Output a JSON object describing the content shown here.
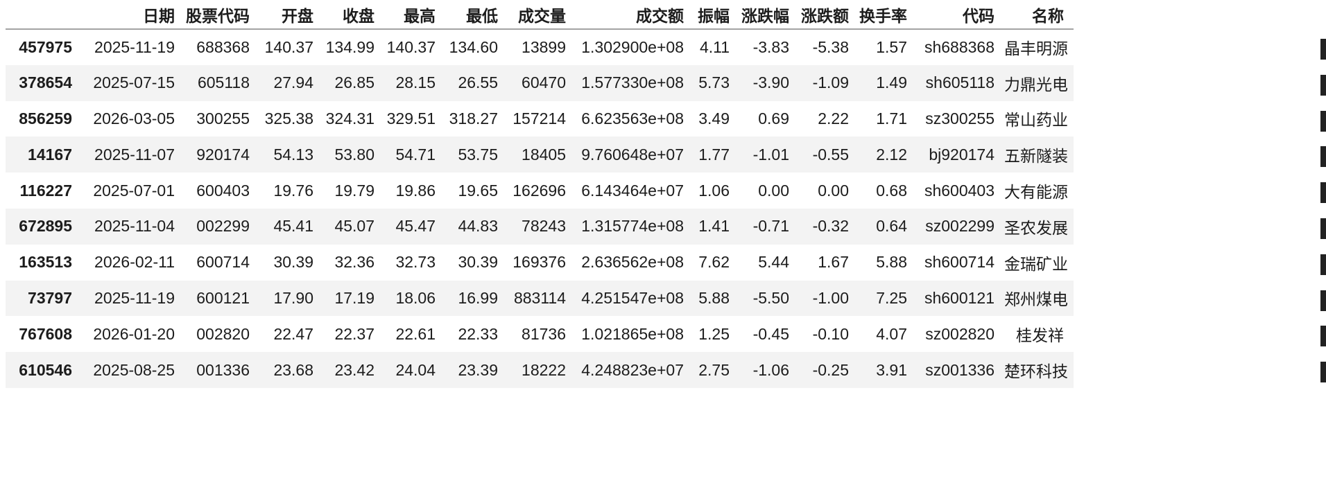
{
  "page": {
    "background": "#ffffff"
  },
  "colors": {
    "text": "#1c1c1c",
    "row_stripe": "#f3f3f3",
    "header_border": "#a3a3a3",
    "clipped_mark": "#222222"
  },
  "table": {
    "index_header": "",
    "columns": [
      "日期",
      "股票代码",
      "开盘",
      "收盘",
      "最高",
      "最低",
      "成交量",
      "成交额",
      "振幅",
      "涨跌幅",
      "涨跌额",
      "换手率",
      "代码",
      "名称"
    ],
    "rows": [
      {
        "index": "457975",
        "cells": [
          "2025-11-19",
          "688368",
          "140.37",
          "134.99",
          "140.37",
          "134.60",
          "13899",
          "1.302900e+08",
          "4.11",
          "-3.83",
          "-5.38",
          "1.57",
          "sh688368",
          "晶丰明源"
        ]
      },
      {
        "index": "378654",
        "cells": [
          "2025-07-15",
          "605118",
          "27.94",
          "26.85",
          "28.15",
          "26.55",
          "60470",
          "1.577330e+08",
          "5.73",
          "-3.90",
          "-1.09",
          "1.49",
          "sh605118",
          "力鼎光电"
        ]
      },
      {
        "index": "856259",
        "cells": [
          "2026-03-05",
          "300255",
          "325.38",
          "324.31",
          "329.51",
          "318.27",
          "157214",
          "6.623563e+08",
          "3.49",
          "0.69",
          "2.22",
          "1.71",
          "sz300255",
          "常山药业"
        ]
      },
      {
        "index": "14167",
        "cells": [
          "2025-11-07",
          "920174",
          "54.13",
          "53.80",
          "54.71",
          "53.75",
          "18405",
          "9.760648e+07",
          "1.77",
          "-1.01",
          "-0.55",
          "2.12",
          "bj920174",
          "五新隧装"
        ]
      },
      {
        "index": "116227",
        "cells": [
          "2025-07-01",
          "600403",
          "19.76",
          "19.79",
          "19.86",
          "19.65",
          "162696",
          "6.143464e+07",
          "1.06",
          "0.00",
          "0.00",
          "0.68",
          "sh600403",
          "大有能源"
        ]
      },
      {
        "index": "672895",
        "cells": [
          "2025-11-04",
          "002299",
          "45.41",
          "45.07",
          "45.47",
          "44.83",
          "78243",
          "1.315774e+08",
          "1.41",
          "-0.71",
          "-0.32",
          "0.64",
          "sz002299",
          "圣农发展"
        ]
      },
      {
        "index": "163513",
        "cells": [
          "2026-02-11",
          "600714",
          "30.39",
          "32.36",
          "32.73",
          "30.39",
          "169376",
          "2.636562e+08",
          "7.62",
          "5.44",
          "1.67",
          "5.88",
          "sh600714",
          "金瑞矿业"
        ]
      },
      {
        "index": "73797",
        "cells": [
          "2025-11-19",
          "600121",
          "17.90",
          "17.19",
          "18.06",
          "16.99",
          "883114",
          "4.251547e+08",
          "5.88",
          "-5.50",
          "-1.00",
          "7.25",
          "sh600121",
          "郑州煤电"
        ]
      },
      {
        "index": "767608",
        "cells": [
          "2026-01-20",
          "002820",
          "22.47",
          "22.37",
          "22.61",
          "22.33",
          "81736",
          "1.021865e+08",
          "1.25",
          "-0.45",
          "-0.10",
          "4.07",
          "sz002820",
          "桂发祥"
        ]
      },
      {
        "index": "610546",
        "cells": [
          "2025-08-25",
          "001336",
          "23.68",
          "23.42",
          "24.04",
          "23.39",
          "18222",
          "4.248823e+07",
          "2.75",
          "-1.06",
          "-0.25",
          "3.91",
          "sz001336",
          "楚环科技"
        ]
      }
    ]
  },
  "right_edge": {
    "clipped_marks_count": 10
  }
}
